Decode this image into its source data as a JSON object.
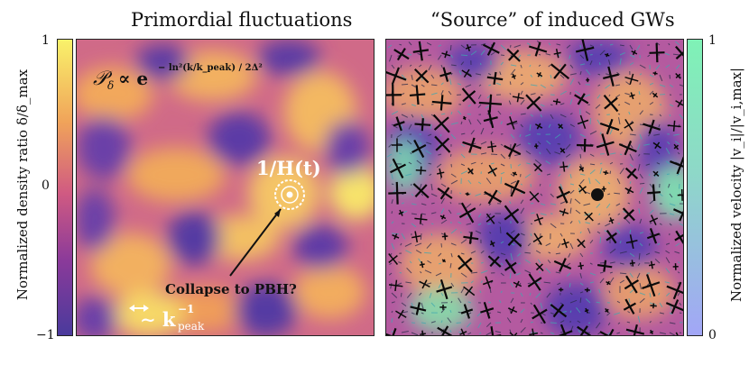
{
  "left_panel": {
    "title": "Primordial fluctuations",
    "formula_lhs": "𝒫",
    "formula_sub": "δ",
    "formula_rel": "∝ e",
    "formula_exp": "− ln²(k/k_peak) / 2Δ²",
    "horizon_label": "1/H(t)",
    "collapse_label": "Collapse to PBH?",
    "scale_label": "∼ k",
    "scale_exp": "−1",
    "scale_sub": "peak"
  },
  "right_panel": {
    "title": "“Source” of induced GWs"
  },
  "left_colorbar": {
    "label": "Normalized density ratio δ/δ_max",
    "ticks": [
      "1",
      "0",
      "−1"
    ],
    "colors": {
      "top": "#f9f26a",
      "mid_high": "#f0a35a",
      "mid": "#d05a82",
      "bottom": "#4a3a9c"
    }
  },
  "right_colorbar": {
    "label": "Normalized velocity |v_i|/|v_i,max|",
    "ticks": [
      "1",
      "0"
    ],
    "colors": {
      "top": "#7ff2b6",
      "bottom": "#a2a6f7"
    }
  }
}
